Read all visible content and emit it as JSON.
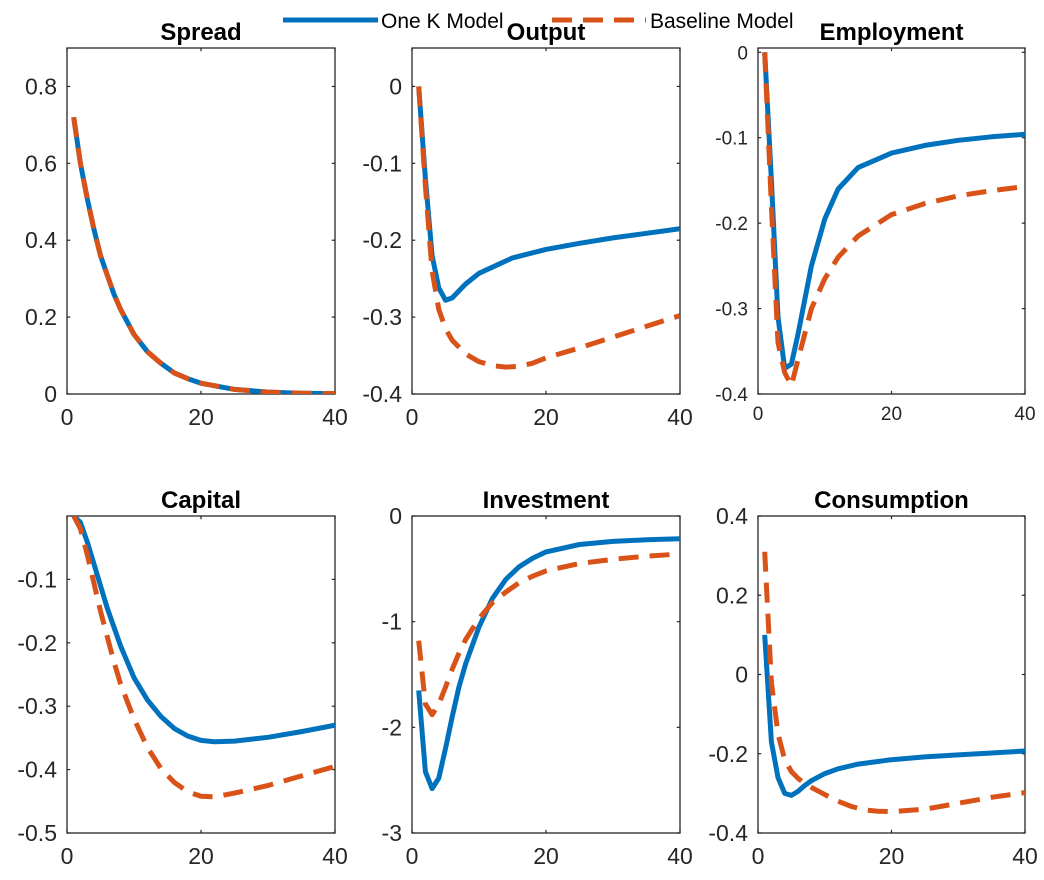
{
  "legend": {
    "entries": [
      {
        "label": "One K Model",
        "color": "#0072BD",
        "dash": "solid"
      },
      {
        "label": "Baseline Model",
        "color": "#D95319",
        "dash": "dashed"
      }
    ],
    "placement": "top-center"
  },
  "chart_data": [
    {
      "type": "line",
      "title": "Spread",
      "xlim": [
        0,
        40
      ],
      "ylim": [
        0,
        0.9
      ],
      "xticks": [
        0,
        20,
        40
      ],
      "xtick_labels": [
        "0",
        "20",
        "40"
      ],
      "yticks": [
        0,
        0.2,
        0.4,
        0.6,
        0.8
      ],
      "ytick_labels": [
        "0",
        "0.2",
        "0.4",
        "0.6",
        "0.8"
      ],
      "series": [
        {
          "name": "One K Model",
          "color": "#0072BD",
          "dash": "solid",
          "x": [
            1,
            2,
            3,
            4,
            5,
            6,
            7,
            8,
            10,
            12,
            14,
            16,
            18,
            20,
            25,
            30,
            35,
            40
          ],
          "y": [
            0.72,
            0.6,
            0.51,
            0.43,
            0.36,
            0.31,
            0.26,
            0.22,
            0.155,
            0.11,
            0.08,
            0.055,
            0.04,
            0.028,
            0.012,
            0.005,
            0.002,
            0.001
          ]
        },
        {
          "name": "Baseline Model",
          "color": "#D95319",
          "dash": "dashed",
          "x": [
            1,
            2,
            3,
            4,
            5,
            6,
            7,
            8,
            10,
            12,
            14,
            16,
            18,
            20,
            25,
            30,
            35,
            40
          ],
          "y": [
            0.72,
            0.6,
            0.51,
            0.43,
            0.36,
            0.31,
            0.26,
            0.22,
            0.155,
            0.11,
            0.08,
            0.055,
            0.04,
            0.028,
            0.012,
            0.005,
            0.002,
            0.001
          ]
        }
      ]
    },
    {
      "type": "line",
      "title": "Output",
      "xlim": [
        0,
        40
      ],
      "ylim": [
        -0.4,
        0.05
      ],
      "xticks": [
        0,
        20,
        40
      ],
      "xtick_labels": [
        "0",
        "20",
        "40"
      ],
      "yticks": [
        -0.4,
        -0.3,
        -0.2,
        -0.1,
        0
      ],
      "ytick_labels": [
        "-0.4",
        "-0.3",
        "-0.2",
        "-0.1",
        "0"
      ],
      "series": [
        {
          "name": "One K Model",
          "color": "#0072BD",
          "dash": "solid",
          "x": [
            1,
            2,
            3,
            4,
            5,
            6,
            8,
            10,
            15,
            20,
            25,
            30,
            35,
            40
          ],
          "y": [
            0,
            -0.12,
            -0.22,
            -0.262,
            -0.278,
            -0.275,
            -0.257,
            -0.243,
            -0.223,
            -0.212,
            -0.204,
            -0.197,
            -0.191,
            -0.185
          ]
        },
        {
          "name": "Baseline Model",
          "color": "#D95319",
          "dash": "dashed",
          "x": [
            1,
            2,
            3,
            4,
            5,
            6,
            8,
            10,
            12,
            14,
            16,
            18,
            20,
            25,
            30,
            35,
            40
          ],
          "y": [
            0,
            -0.13,
            -0.24,
            -0.29,
            -0.315,
            -0.33,
            -0.348,
            -0.358,
            -0.363,
            -0.365,
            -0.364,
            -0.36,
            -0.353,
            -0.34,
            -0.326,
            -0.312,
            -0.298
          ]
        }
      ]
    },
    {
      "type": "line",
      "title": "Employment",
      "xlim": [
        0,
        40
      ],
      "ylim": [
        -0.4,
        0.005
      ],
      "xticks": [
        0,
        20,
        40
      ],
      "xtick_labels": [
        "0",
        "20",
        "40"
      ],
      "yticks": [
        -0.4,
        -0.3,
        -0.2,
        -0.1,
        0
      ],
      "ytick_labels": [
        "-0.4",
        "-0.3",
        "-0.2",
        "-0.1",
        "0"
      ],
      "series": [
        {
          "name": "One K Model",
          "color": "#0072BD",
          "dash": "solid",
          "x": [
            1,
            2,
            3,
            4,
            5,
            6,
            7,
            8,
            10,
            12,
            15,
            20,
            25,
            30,
            35,
            40
          ],
          "y": [
            0,
            -0.15,
            -0.31,
            -0.37,
            -0.365,
            -0.33,
            -0.29,
            -0.25,
            -0.195,
            -0.16,
            -0.135,
            -0.118,
            -0.109,
            -0.103,
            -0.099,
            -0.096
          ]
        },
        {
          "name": "Baseline Model",
          "color": "#D95319",
          "dash": "dashed",
          "x": [
            1,
            2,
            3,
            4,
            5,
            6,
            7,
            8,
            10,
            12,
            15,
            20,
            25,
            30,
            35,
            40
          ],
          "y": [
            0,
            -0.18,
            -0.34,
            -0.375,
            -0.39,
            -0.36,
            -0.33,
            -0.3,
            -0.265,
            -0.24,
            -0.215,
            -0.19,
            -0.177,
            -0.168,
            -0.162,
            -0.157
          ]
        }
      ]
    },
    {
      "type": "line",
      "title": "Capital",
      "xlim": [
        0,
        40
      ],
      "ylim": [
        -0.5,
        0
      ],
      "xticks": [
        0,
        20,
        40
      ],
      "xtick_labels": [
        "0",
        "20",
        "40"
      ],
      "yticks": [
        -0.5,
        -0.4,
        -0.3,
        -0.2,
        -0.1
      ],
      "ytick_labels": [
        "-0.5",
        "-0.4",
        "-0.3",
        "-0.2",
        "-0.1"
      ],
      "series": [
        {
          "name": "One K Model",
          "color": "#0072BD",
          "dash": "solid",
          "x": [
            1,
            2,
            3,
            4,
            5,
            6,
            7,
            8,
            10,
            12,
            14,
            16,
            18,
            20,
            22,
            25,
            30,
            35,
            40
          ],
          "y": [
            0,
            -0.01,
            -0.04,
            -0.075,
            -0.11,
            -0.145,
            -0.175,
            -0.205,
            -0.255,
            -0.29,
            -0.316,
            -0.335,
            -0.347,
            -0.354,
            -0.356,
            -0.355,
            -0.349,
            -0.34,
            -0.33
          ]
        },
        {
          "name": "Baseline Model",
          "color": "#D95319",
          "dash": "dashed",
          "x": [
            1,
            2,
            3,
            4,
            5,
            6,
            7,
            8,
            10,
            12,
            14,
            16,
            18,
            20,
            22,
            25,
            30,
            35,
            40
          ],
          "y": [
            0,
            -0.02,
            -0.06,
            -0.105,
            -0.15,
            -0.19,
            -0.23,
            -0.265,
            -0.32,
            -0.365,
            -0.398,
            -0.42,
            -0.435,
            -0.442,
            -0.443,
            -0.437,
            -0.425,
            -0.41,
            -0.395
          ]
        }
      ]
    },
    {
      "type": "line",
      "title": "Investment",
      "xlim": [
        0,
        40
      ],
      "ylim": [
        -3,
        0
      ],
      "xticks": [
        0,
        20,
        40
      ],
      "xtick_labels": [
        "0",
        "20",
        "40"
      ],
      "yticks": [
        -3,
        -2,
        -1,
        0
      ],
      "ytick_labels": [
        "-3",
        "-2",
        "-1",
        "0"
      ],
      "series": [
        {
          "name": "One K Model",
          "color": "#0072BD",
          "dash": "solid",
          "x": [
            1,
            2,
            3,
            4,
            5,
            6,
            7,
            8,
            10,
            12,
            14,
            16,
            18,
            20,
            25,
            30,
            35,
            40
          ],
          "y": [
            -1.65,
            -2.42,
            -2.58,
            -2.48,
            -2.2,
            -1.9,
            -1.62,
            -1.4,
            -1.05,
            -0.78,
            -0.6,
            -0.48,
            -0.4,
            -0.34,
            -0.27,
            -0.24,
            -0.225,
            -0.215
          ]
        },
        {
          "name": "Baseline Model",
          "color": "#D95319",
          "dash": "dashed",
          "x": [
            1,
            2,
            3,
            4,
            5,
            6,
            7,
            8,
            10,
            12,
            14,
            16,
            18,
            20,
            25,
            30,
            35,
            40
          ],
          "y": [
            -1.18,
            -1.78,
            -1.88,
            -1.78,
            -1.62,
            -1.45,
            -1.3,
            -1.17,
            -0.97,
            -0.82,
            -0.72,
            -0.63,
            -0.57,
            -0.52,
            -0.45,
            -0.41,
            -0.38,
            -0.36
          ]
        }
      ]
    },
    {
      "type": "line",
      "title": "Consumption",
      "xlim": [
        0,
        40
      ],
      "ylim": [
        -0.4,
        0.4
      ],
      "xticks": [
        0,
        20,
        40
      ],
      "xtick_labels": [
        "0",
        "20",
        "40"
      ],
      "yticks": [
        -0.4,
        -0.2,
        0,
        0.2,
        0.4
      ],
      "ytick_labels": [
        "-0.4",
        "-0.2",
        "0",
        "0.2",
        "0.4"
      ],
      "series": [
        {
          "name": "One K Model",
          "color": "#0072BD",
          "dash": "solid",
          "x": [
            1,
            2,
            3,
            4,
            5,
            6,
            7,
            8,
            10,
            12,
            15,
            20,
            25,
            30,
            35,
            40
          ],
          "y": [
            0.1,
            -0.17,
            -0.26,
            -0.3,
            -0.305,
            -0.295,
            -0.28,
            -0.268,
            -0.25,
            -0.238,
            -0.226,
            -0.215,
            -0.208,
            -0.203,
            -0.198,
            -0.193
          ]
        },
        {
          "name": "Baseline Model",
          "color": "#D95319",
          "dash": "dashed",
          "x": [
            1,
            2,
            3,
            4,
            5,
            6,
            7,
            8,
            10,
            12,
            14,
            16,
            18,
            20,
            25,
            30,
            35,
            40
          ],
          "y": [
            0.31,
            -0.02,
            -0.15,
            -0.215,
            -0.245,
            -0.262,
            -0.275,
            -0.285,
            -0.303,
            -0.32,
            -0.333,
            -0.342,
            -0.345,
            -0.346,
            -0.34,
            -0.325,
            -0.31,
            -0.298
          ]
        }
      ]
    }
  ]
}
